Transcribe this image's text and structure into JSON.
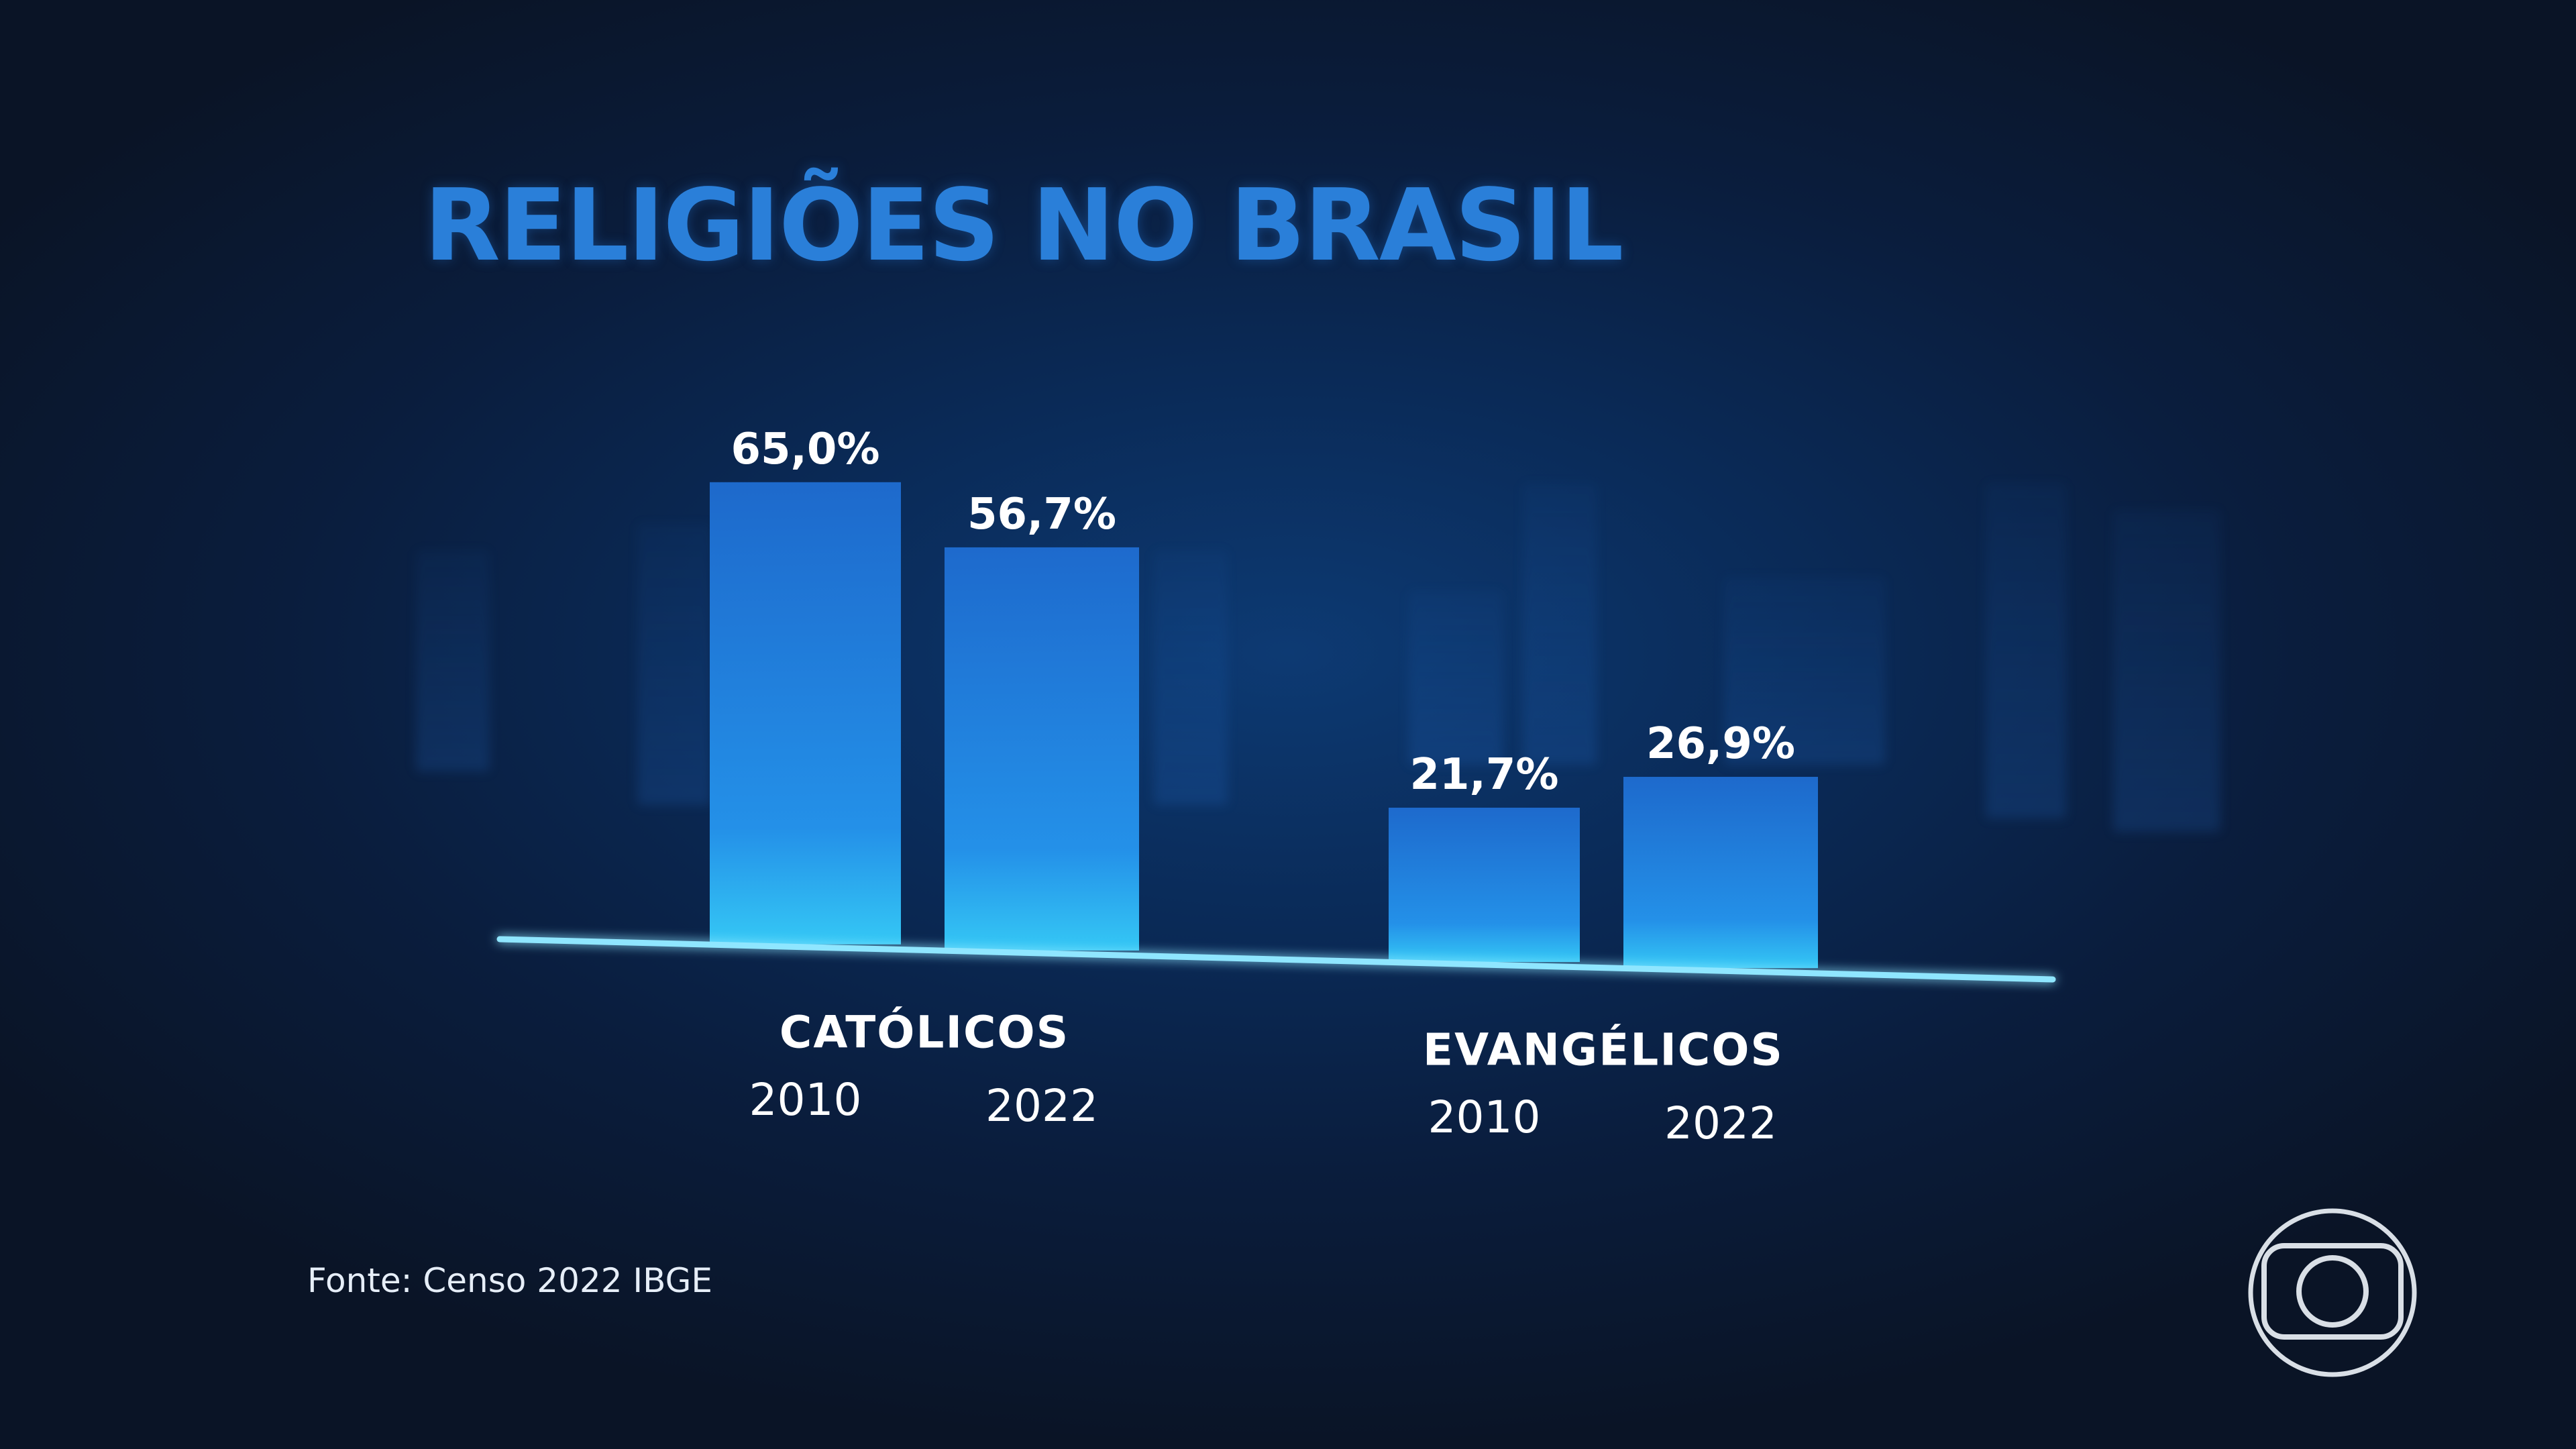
{
  "title": "RELIGIÕES NO BRASIL",
  "source": "Fonte: Censo 2022 IBGE",
  "colors": {
    "title": "#2a7fd9",
    "bar_top": "#1f6fd6",
    "bar_bottom": "#35c8f5",
    "baseline": "#8fe6ff",
    "background": "#0a1d3d"
  },
  "logo_icon": "broadcaster-globe-icon",
  "chart_data": {
    "type": "bar",
    "categories": [
      "CATÓLICOS",
      "EVANGÉLICOS"
    ],
    "years": [
      "2010",
      "2022"
    ],
    "series": [
      {
        "values": [
          65.0,
          21.7
        ],
        "labels": [
          "65,0%",
          "21,7%"
        ]
      },
      {
        "values": [
          56.7,
          26.9
        ],
        "labels": [
          "56,7%",
          "26,9%"
        ]
      }
    ],
    "ylim": [
      0,
      70
    ],
    "grid": false,
    "legend": "none"
  }
}
